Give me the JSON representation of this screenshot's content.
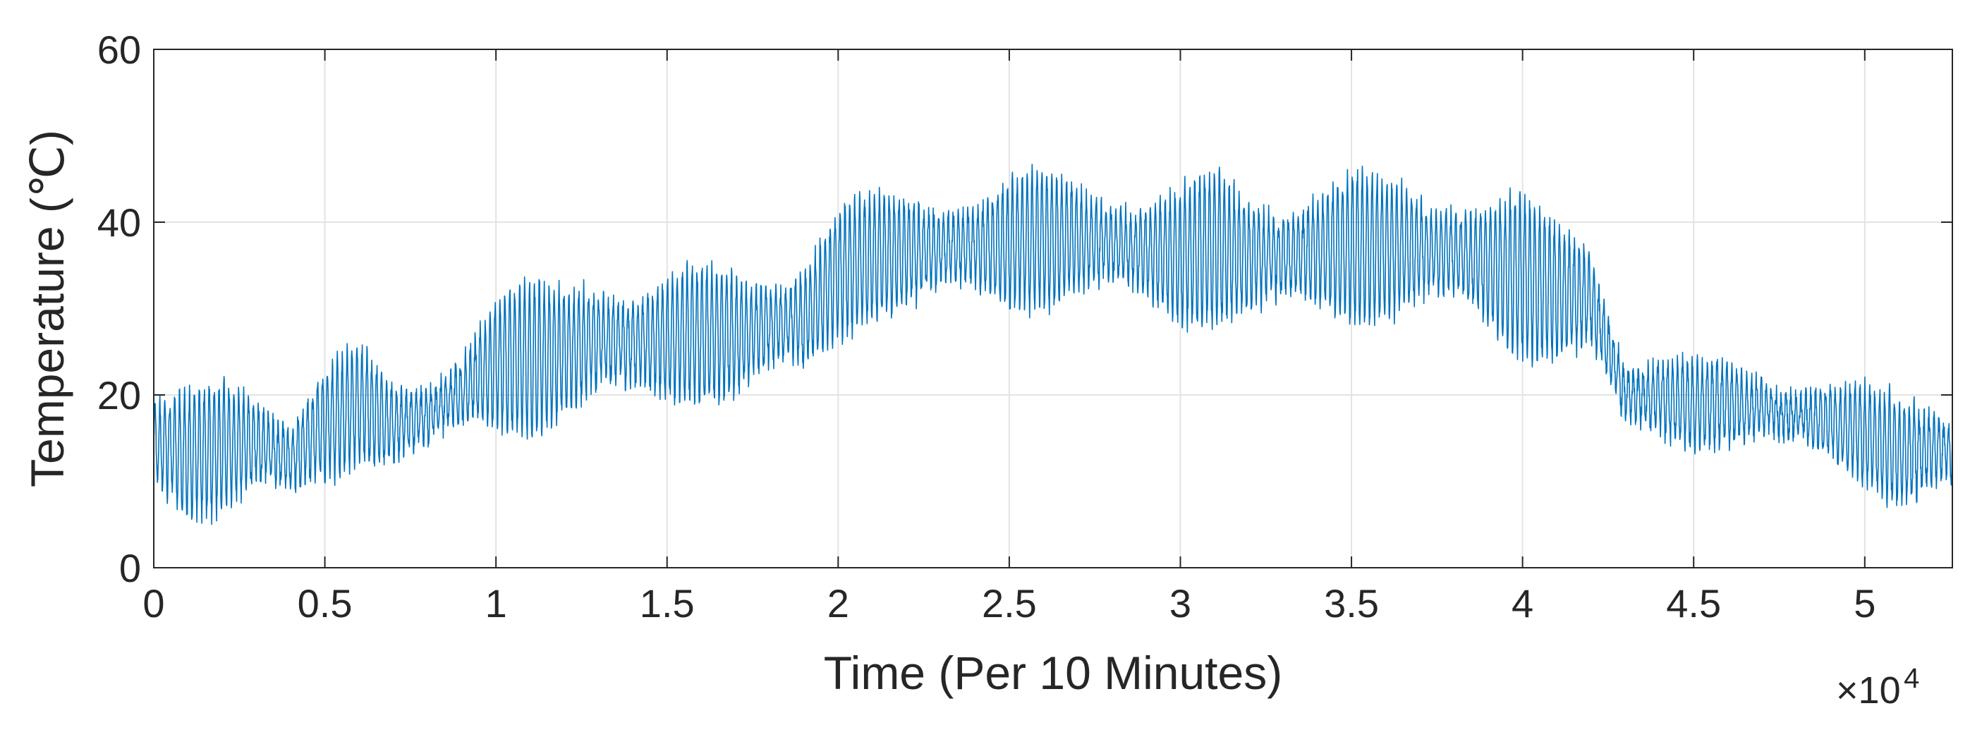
{
  "chart_data": {
    "type": "line",
    "xlabel": "Time (Per 10 Minutes)",
    "ylabel": "Temperature (℃)",
    "xlim": [
      0,
      52560
    ],
    "ylim": [
      0,
      60
    ],
    "x_ticks": [
      0,
      5000,
      10000,
      15000,
      20000,
      25000,
      30000,
      35000,
      40000,
      45000,
      50000
    ],
    "x_tick_labels": [
      "0",
      "0.5",
      "1",
      "1.5",
      "2",
      "2.5",
      "3",
      "3.5",
      "4",
      "4.5",
      "5"
    ],
    "y_ticks": [
      0,
      20,
      40,
      60
    ],
    "y_tick_labels": [
      "0",
      "20",
      "40",
      "60"
    ],
    "x_multiplier_base": "×10",
    "x_multiplier_exponent": "4",
    "grid": true,
    "line_color": "#0072BD",
    "series": [
      {
        "x": [
          0,
          1000,
          2000,
          3000,
          4000,
          5000,
          6000,
          7000,
          8000,
          9000,
          10000,
          11000,
          12000,
          13000,
          14000,
          15000,
          16000,
          17000,
          18000,
          19000,
          20000,
          21000,
          22000,
          23000,
          24000,
          25000,
          26000,
          27000,
          28000,
          29000,
          30000,
          31000,
          32000,
          33000,
          34000,
          35000,
          36000,
          37000,
          38000,
          39000,
          40000,
          41000,
          42000,
          43000,
          44000,
          45000,
          46000,
          47000,
          48000,
          49000,
          50000,
          51000,
          52000,
          52560
        ],
        "y_min": [
          9,
          6,
          6,
          7,
          6,
          9,
          12,
          12,
          13,
          14,
          15,
          15,
          17,
          17,
          18,
          19,
          19,
          19,
          20,
          20,
          26,
          29,
          29,
          30,
          30,
          30,
          30,
          30,
          30,
          29,
          28,
          28,
          28,
          28,
          28,
          28,
          29,
          29,
          28,
          26,
          24,
          24,
          24,
          15,
          14,
          14,
          14,
          14,
          13,
          12,
          10,
          7,
          7,
          8
        ],
        "y_max": [
          20,
          20,
          22,
          22,
          19,
          24,
          26,
          21,
          22,
          27,
          32,
          33,
          33,
          36,
          34,
          34,
          35,
          35,
          36,
          37,
          42,
          43,
          44,
          44,
          44,
          45,
          46,
          46,
          45,
          44,
          44,
          46,
          44,
          44,
          45,
          46,
          45,
          45,
          45,
          44,
          43,
          40,
          38,
          25,
          25,
          24,
          24,
          23,
          22,
          22,
          21,
          20,
          20,
          19
        ]
      }
    ]
  }
}
